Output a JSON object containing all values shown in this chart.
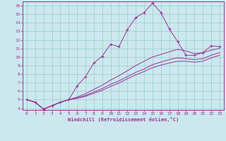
{
  "xlabel": "Windchill (Refroidissement éolien,°C)",
  "background_color": "#cce8ee",
  "grid_color": "#99cccc",
  "line_color": "#993399",
  "xlim": [
    -0.5,
    23.5
  ],
  "ylim": [
    3.8,
    16.5
  ],
  "xticks": [
    0,
    1,
    2,
    3,
    4,
    5,
    6,
    7,
    8,
    9,
    10,
    11,
    12,
    13,
    14,
    15,
    16,
    17,
    18,
    19,
    20,
    21,
    22,
    23
  ],
  "yticks": [
    4,
    5,
    6,
    7,
    8,
    9,
    10,
    11,
    12,
    13,
    14,
    15,
    16
  ],
  "series": [
    {
      "x": [
        0,
        1,
        2,
        3,
        4,
        5,
        6,
        7,
        8,
        9,
        10,
        11,
        12,
        13,
        14,
        15,
        16,
        17,
        18,
        19,
        20,
        21,
        22,
        23
      ],
      "y": [
        5.0,
        4.7,
        3.9,
        4.3,
        4.7,
        5.0,
        6.6,
        7.7,
        9.3,
        10.1,
        11.5,
        11.2,
        13.2,
        14.6,
        15.2,
        16.3,
        15.2,
        13.3,
        11.8,
        10.2,
        10.2,
        10.5,
        11.3,
        11.2
      ],
      "marker": "+"
    },
    {
      "x": [
        0,
        1,
        2,
        3,
        4,
        5,
        6,
        7,
        8,
        9,
        10,
        11,
        12,
        13,
        14,
        15,
        16,
        17,
        18,
        19,
        20,
        21,
        22,
        23
      ],
      "y": [
        5.0,
        4.7,
        3.9,
        4.3,
        4.7,
        5.0,
        5.3,
        5.7,
        6.2,
        6.7,
        7.3,
        7.8,
        8.4,
        9.0,
        9.5,
        10.0,
        10.3,
        10.6,
        10.9,
        10.7,
        10.4,
        10.5,
        10.8,
        11.0
      ],
      "marker": null
    },
    {
      "x": [
        0,
        1,
        2,
        3,
        4,
        5,
        6,
        7,
        8,
        9,
        10,
        11,
        12,
        13,
        14,
        15,
        16,
        17,
        18,
        19,
        20,
        21,
        22,
        23
      ],
      "y": [
        5.0,
        4.7,
        3.9,
        4.3,
        4.7,
        5.0,
        5.2,
        5.5,
        5.9,
        6.3,
        6.8,
        7.2,
        7.7,
        8.2,
        8.6,
        9.1,
        9.4,
        9.7,
        9.9,
        9.8,
        9.7,
        9.8,
        10.2,
        10.5
      ],
      "marker": null
    },
    {
      "x": [
        0,
        1,
        2,
        3,
        4,
        5,
        6,
        7,
        8,
        9,
        10,
        11,
        12,
        13,
        14,
        15,
        16,
        17,
        18,
        19,
        20,
        21,
        22,
        23
      ],
      "y": [
        5.0,
        4.7,
        3.9,
        4.3,
        4.7,
        5.0,
        5.15,
        5.4,
        5.75,
        6.1,
        6.55,
        6.95,
        7.45,
        7.9,
        8.3,
        8.75,
        9.05,
        9.3,
        9.5,
        9.5,
        9.4,
        9.5,
        9.9,
        10.2
      ],
      "marker": null
    }
  ]
}
